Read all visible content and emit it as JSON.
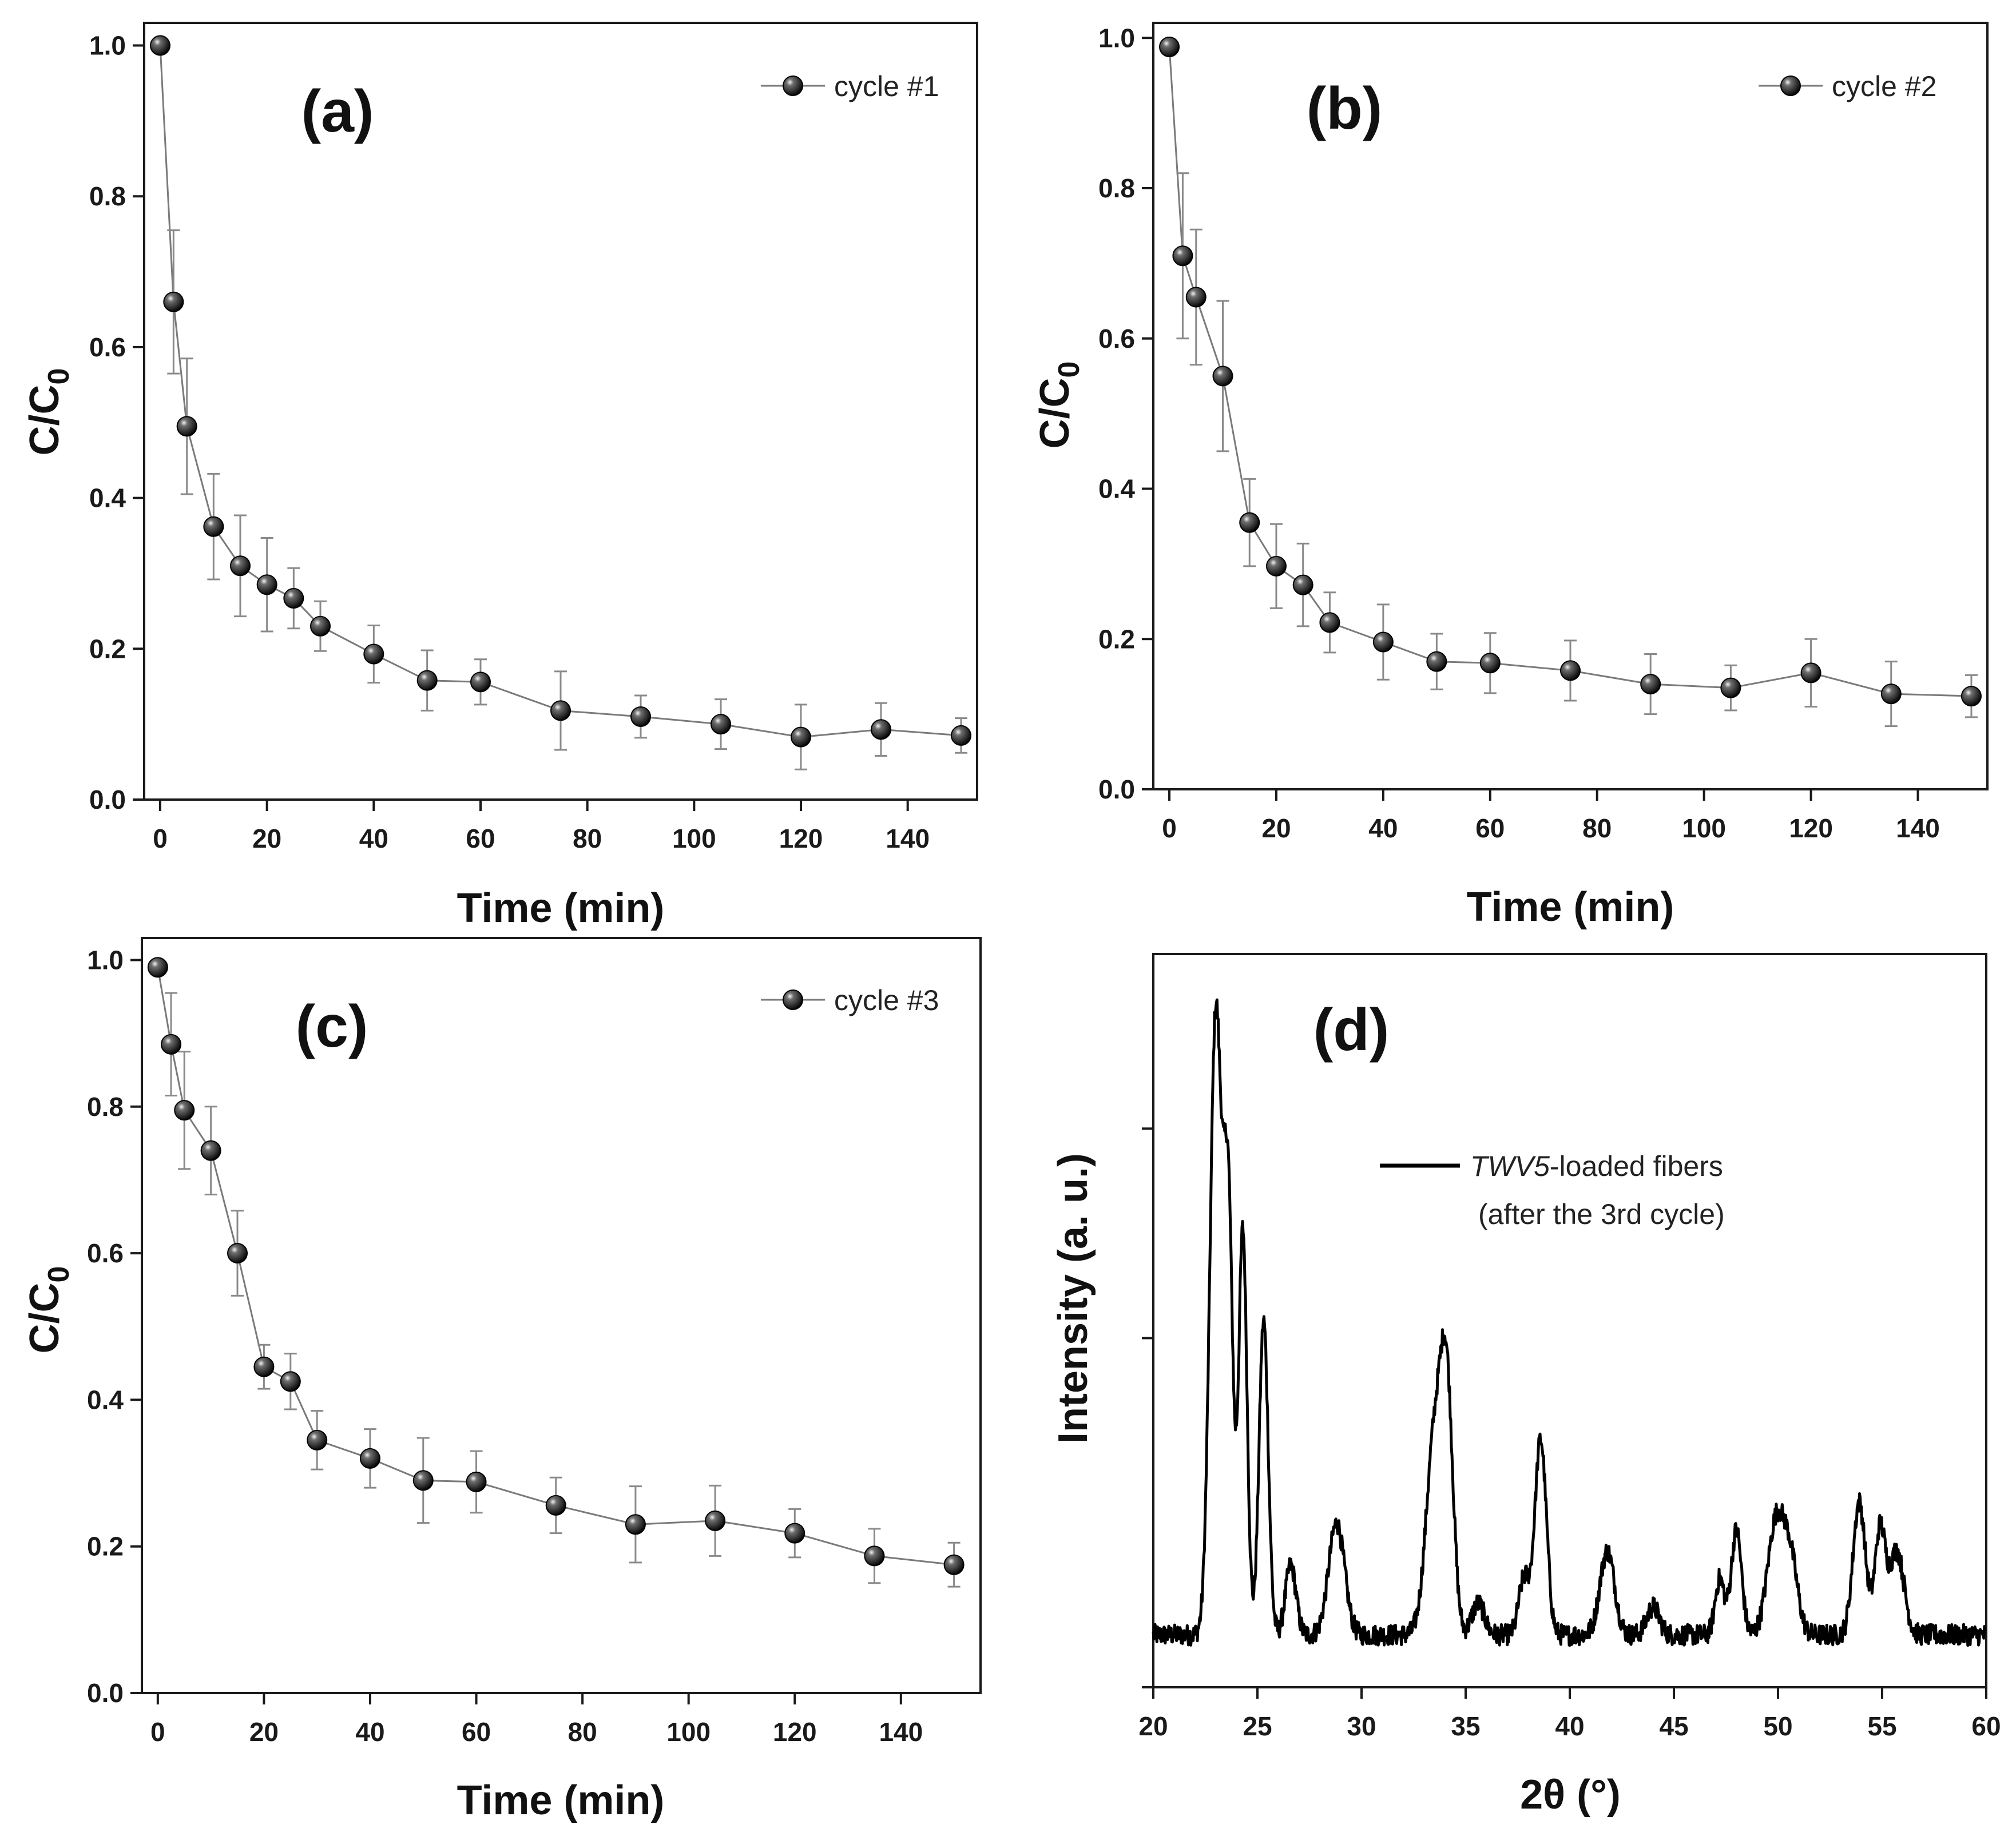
{
  "chart_data": [
    {
      "type": "scatter",
      "panel_label": "(a)",
      "xlabel": "Time (min)",
      "ylabel": {
        "main": "C/C",
        "sub": "0"
      },
      "xlim": [
        -3,
        153
      ],
      "ylim": [
        0,
        1.03
      ],
      "xticks": [
        0,
        20,
        40,
        60,
        80,
        100,
        120,
        140
      ],
      "xtick_labels": [
        "0",
        "20",
        "40",
        "60",
        "80",
        "100",
        "120",
        "140"
      ],
      "yticks": [
        0,
        0.2,
        0.4,
        0.6,
        0.8,
        1.0
      ],
      "ytick_labels": [
        "0.0",
        "0.2",
        "0.4",
        "0.6",
        "0.8",
        "1.0"
      ],
      "legend": "cycle #1",
      "legend_position": "top-right",
      "x": [
        0,
        2.5,
        5,
        10,
        15,
        20,
        25,
        30,
        40,
        50,
        60,
        75,
        90,
        105,
        120,
        135,
        150
      ],
      "y": [
        1.0,
        0.66,
        0.495,
        0.362,
        0.31,
        0.285,
        0.267,
        0.23,
        0.193,
        0.158,
        0.156,
        0.118,
        0.11,
        0.1,
        0.083,
        0.093,
        0.085
      ],
      "yerr": [
        0,
        0.095,
        0.09,
        0.07,
        0.067,
        0.062,
        0.04,
        0.033,
        0.038,
        0.04,
        0.03,
        0.052,
        0.028,
        0.033,
        0.043,
        0.035,
        0.023
      ]
    },
    {
      "type": "scatter",
      "panel_label": "(b)",
      "xlabel": "Time (min)",
      "ylabel": {
        "main": "C/C",
        "sub": "0"
      },
      "xlim": [
        -3,
        153
      ],
      "ylim": [
        0,
        1.02
      ],
      "xticks": [
        0,
        20,
        40,
        60,
        80,
        100,
        120,
        140
      ],
      "xtick_labels": [
        "0",
        "20",
        "40",
        "60",
        "80",
        "100",
        "120",
        "140"
      ],
      "yticks": [
        0,
        0.2,
        0.4,
        0.6,
        0.8,
        1.0
      ],
      "ytick_labels": [
        "0.0",
        "0.2",
        "0.4",
        "0.6",
        "0.8",
        "1.0"
      ],
      "legend": "cycle #2",
      "legend_position": "top-right",
      "x": [
        0,
        2.5,
        5,
        10,
        15,
        20,
        25,
        30,
        40,
        50,
        60,
        75,
        90,
        105,
        120,
        135,
        150
      ],
      "y": [
        0.988,
        0.71,
        0.655,
        0.55,
        0.355,
        0.297,
        0.272,
        0.222,
        0.196,
        0.17,
        0.168,
        0.158,
        0.14,
        0.135,
        0.155,
        0.127,
        0.124
      ],
      "yerr": [
        0,
        0.11,
        0.09,
        0.1,
        0.058,
        0.056,
        0.055,
        0.04,
        0.05,
        0.037,
        0.04,
        0.04,
        0.04,
        0.03,
        0.045,
        0.043,
        0.028
      ]
    },
    {
      "type": "scatter",
      "panel_label": "(c)",
      "xlabel": "Time (min)",
      "ylabel": {
        "main": "C/C",
        "sub": "0"
      },
      "xlim": [
        -3,
        155
      ],
      "ylim": [
        0,
        1.03
      ],
      "xticks": [
        0,
        20,
        40,
        60,
        80,
        100,
        120,
        140
      ],
      "xtick_labels": [
        "0",
        "20",
        "40",
        "60",
        "80",
        "100",
        "120",
        "140"
      ],
      "yticks": [
        0,
        0.2,
        0.4,
        0.6,
        0.8,
        1.0
      ],
      "ytick_labels": [
        "0.0",
        "0.2",
        "0.4",
        "0.6",
        "0.8",
        "1.0"
      ],
      "legend": "cycle #3",
      "legend_position": "top-right",
      "x": [
        0,
        2.5,
        5,
        10,
        15,
        20,
        25,
        30,
        40,
        50,
        60,
        75,
        90,
        105,
        120,
        135,
        150
      ],
      "y": [
        0.99,
        0.885,
        0.795,
        0.74,
        0.6,
        0.445,
        0.425,
        0.345,
        0.32,
        0.29,
        0.288,
        0.256,
        0.23,
        0.235,
        0.218,
        0.187,
        0.175
      ],
      "yerr": [
        0,
        0.07,
        0.08,
        0.06,
        0.058,
        0.03,
        0.038,
        0.04,
        0.04,
        0.058,
        0.042,
        0.038,
        0.052,
        0.048,
        0.033,
        0.037,
        0.03
      ]
    },
    {
      "type": "line",
      "panel_label": "(d)",
      "xlabel": "2θ (°)",
      "ylabel": "Intensity (a. u.)",
      "xlim": [
        20,
        60
      ],
      "ylim": [
        0,
        1.05
      ],
      "xticks": [
        20,
        25,
        30,
        35,
        40,
        45,
        50,
        55,
        60
      ],
      "xtick_labels": [
        "20",
        "25",
        "30",
        "35",
        "40",
        "45",
        "50",
        "55",
        "60"
      ],
      "yticks": [
        0.0,
        0.5,
        0.8
      ],
      "ytick_labels": [],
      "legend": {
        "italic": "TWV5",
        "rest": "-loaded fibers",
        "line2": "(after the 3rd cycle)"
      },
      "legend_position": "upper-center",
      "baseline": 0.075,
      "noise_amplitude": 0.03,
      "peaks": [
        {
          "pos": 23.0,
          "height": 0.89,
          "width": 0.28
        },
        {
          "pos": 23.6,
          "height": 0.6,
          "width": 0.22
        },
        {
          "pos": 24.3,
          "height": 0.58,
          "width": 0.2
        },
        {
          "pos": 25.3,
          "height": 0.45,
          "width": 0.22
        },
        {
          "pos": 26.6,
          "height": 0.1,
          "width": 0.25
        },
        {
          "pos": 28.8,
          "height": 0.16,
          "width": 0.38
        },
        {
          "pos": 33.5,
          "height": 0.28,
          "width": 0.4
        },
        {
          "pos": 34.1,
          "height": 0.32,
          "width": 0.3
        },
        {
          "pos": 35.6,
          "height": 0.045,
          "width": 0.3
        },
        {
          "pos": 37.8,
          "height": 0.08,
          "width": 0.25
        },
        {
          "pos": 38.6,
          "height": 0.28,
          "width": 0.28
        },
        {
          "pos": 41.8,
          "height": 0.12,
          "width": 0.35
        },
        {
          "pos": 44.0,
          "height": 0.04,
          "width": 0.3
        },
        {
          "pos": 47.2,
          "height": 0.08,
          "width": 0.22
        },
        {
          "pos": 48.0,
          "height": 0.15,
          "width": 0.25
        },
        {
          "pos": 49.9,
          "height": 0.16,
          "width": 0.4
        },
        {
          "pos": 50.6,
          "height": 0.1,
          "width": 0.35
        },
        {
          "pos": 53.9,
          "height": 0.19,
          "width": 0.3
        },
        {
          "pos": 54.9,
          "height": 0.15,
          "width": 0.25
        },
        {
          "pos": 55.7,
          "height": 0.12,
          "width": 0.35
        }
      ]
    }
  ]
}
